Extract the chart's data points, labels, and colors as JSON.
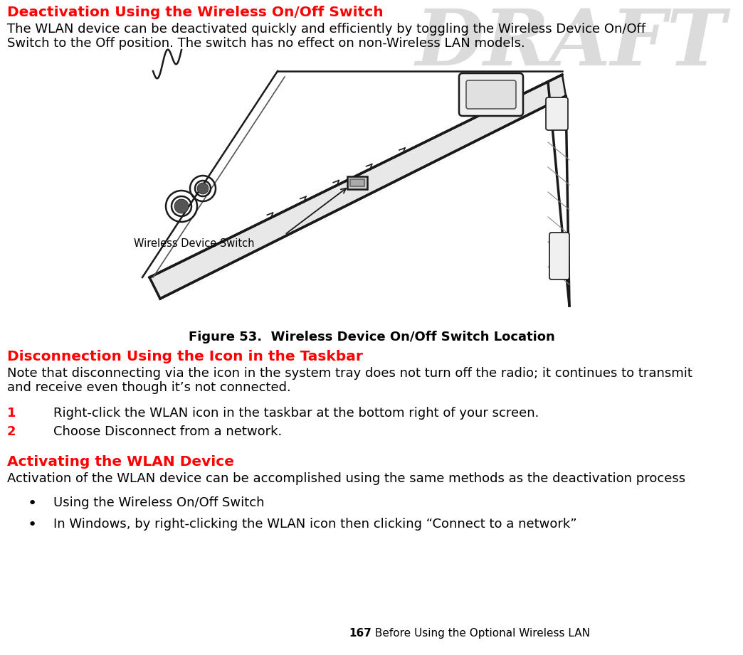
{
  "bg_color": "#ffffff",
  "draft_text": "DRAFT",
  "draft_color": "#b0b0b0",
  "draft_fontsize": 80,
  "heading1": "Deactivation Using the Wireless On/Off Switch",
  "heading1_color": "#ff0000",
  "heading1_fontsize": 14.5,
  "para1_line1": "The WLAN device can be deactivated quickly and efficiently by toggling the Wireless Device On/Off",
  "para1_line2": "Switch to the Off position. The switch has no effect on non-Wireless LAN models.",
  "para1_fontsize": 13,
  "para1_color": "#000000",
  "figure_caption": "Figure 53.  Wireless Device On/Off Switch Location",
  "figure_caption_fontsize": 13,
  "figure_caption_color": "#000000",
  "heading2": "Disconnection Using the Icon in the Taskbar",
  "heading2_color": "#ff0000",
  "heading2_fontsize": 14.5,
  "para2_line1": "Note that disconnecting via the icon in the system tray does not turn off the radio; it continues to transmit",
  "para2_line2": "and receive even though it’s not connected.",
  "para2_fontsize": 13,
  "para2_color": "#000000",
  "step1_num": "1",
  "step1_text": "Right-click the WLAN icon in the taskbar at the bottom right of your screen.",
  "step2_num": "2",
  "step2_text": "Choose Disconnect from a network.",
  "step_fontsize": 13,
  "step_color": "#000000",
  "step_num_color": "#ff0000",
  "heading3": "Activating the WLAN Device",
  "heading3_color": "#ff0000",
  "heading3_fontsize": 14.5,
  "para3": "Activation of the WLAN device can be accomplished using the same methods as the deactivation process",
  "para3_fontsize": 13,
  "para3_color": "#000000",
  "bullet1": "Using the Wireless On/Off Switch",
  "bullet2": "In Windows, by right-clicking the WLAN icon then clicking “Connect to a network”",
  "bullet_fontsize": 13,
  "bullet_color": "#000000",
  "footer_bold": "167",
  "footer_normal": " Before Using the Optional Wireless LAN",
  "footer_fontsize": 11,
  "footer_color": "#000000",
  "figure_label": "Wireless Device Switch",
  "figure_label_fontsize": 10.5,
  "figure_label_color": "#000000"
}
